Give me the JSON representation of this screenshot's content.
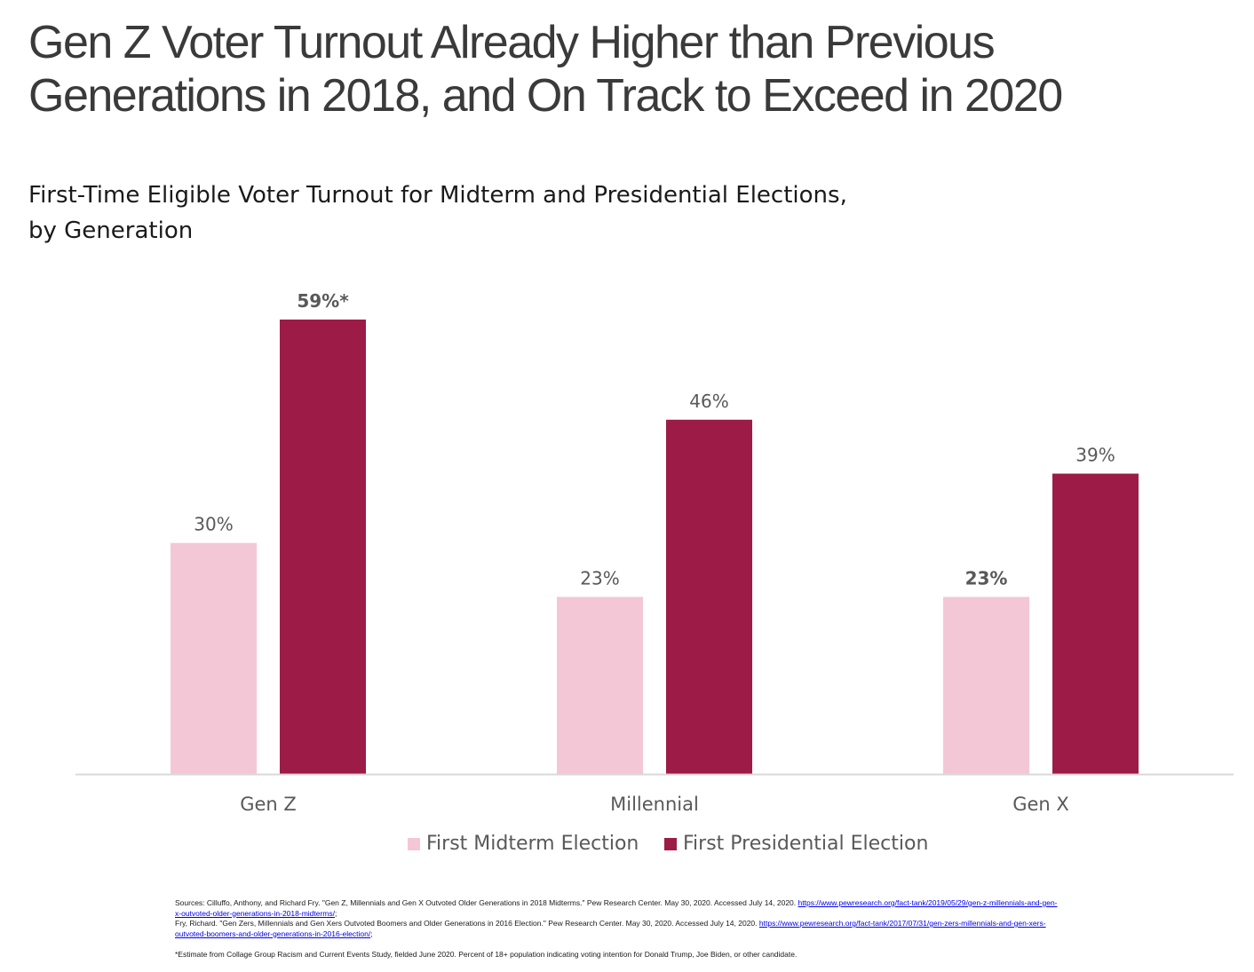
{
  "title": "Gen Z Voter Turnout Already Higher than Previous Generations in 2018, and On Track to Exceed in 2020",
  "subtitle_line1": "First-Time Eligible Voter Turnout for Midterm and Presidential Elections,",
  "subtitle_line2": "by Generation",
  "colors": {
    "midterm": "#f4c7d6",
    "presidential": "#9c1c47",
    "axis": "#d9d9d9",
    "label": "#595959"
  },
  "chart_data": {
    "type": "bar",
    "categories": [
      "Gen Z",
      "Millennial",
      "Gen X"
    ],
    "series": [
      {
        "name": "First Midterm Election",
        "values": [
          30,
          23,
          23
        ],
        "labels": [
          "30%",
          "23%",
          "23%"
        ],
        "label_bold": [
          false,
          false,
          true
        ]
      },
      {
        "name": "First Presidential Election",
        "values": [
          59,
          46,
          39
        ],
        "labels": [
          "59%*",
          "46%",
          "39%"
        ],
        "label_bold": [
          true,
          false,
          false
        ]
      }
    ],
    "ylim": [
      0,
      59
    ],
    "grid": false,
    "legend": "bottom"
  },
  "legend": {
    "midterm_label": "First Midterm Election",
    "presidential_label": "First Presidential Election"
  },
  "sources": {
    "line1_text": "Sources: Cilluffo, Anthony, and Richard Fry. \"Gen Z, Millennials and Gen X Outvoted Older Generations in 2018 Midterms.\" Pew Research Center. May 30, 2020. Accessed July 14, 2020. ",
    "line1_link": "https://www.pewresearch.org/fact-tank/2019/05/29/gen-z-millennials-and-gen-x-outvoted-older-generations-in-2018-midterms/",
    "line2_text": "Fry, Richard. \"Gen Zers, Millennials and Gen Xers Outvoted Boomers and Older Generations in 2016 Election.\" Pew Research Center. May 30, 2020. Accessed July 14, 2020. ",
    "line2_link": "https://www.pewresearch.org/fact-tank/2017/07/31/gen-zers-millennials-and-gen-xers-outvoted-boomers-and-older-generations-in-2016-election/",
    "footnote": "*Estimate from Collage Group Racism and Current Events Study, fielded June 2020. Percent of 18+ population indicating voting intention for Donald Trump, Joe Biden, or other candidate."
  }
}
